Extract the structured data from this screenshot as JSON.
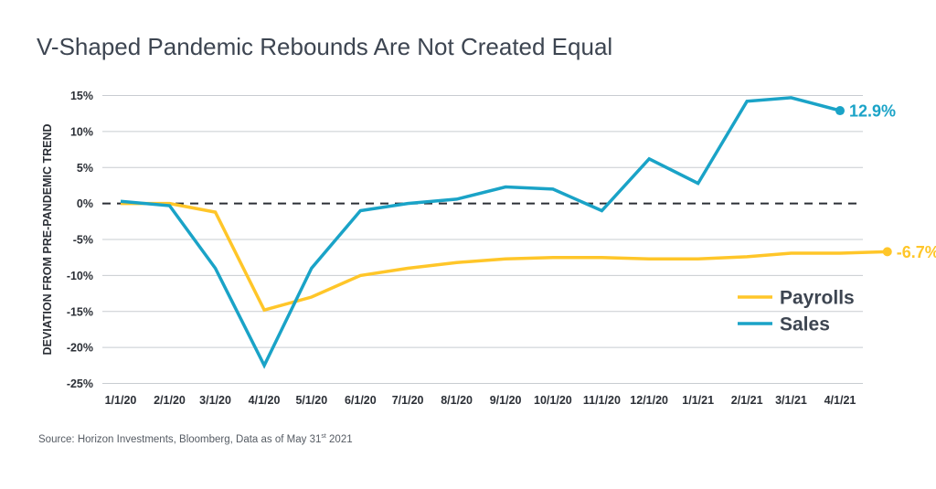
{
  "chart_data": {
    "type": "line",
    "title": "V-Shaped Pandemic Rebounds Are Not Created Equal",
    "xlabel": "",
    "ylabel": "DEVIATION FROM PRE-PANDEMIC TREND",
    "x": [
      "1/1/20",
      "2/1/20",
      "3/1/20",
      "4/1/20",
      "5/1/20",
      "6/1/20",
      "7/1/20",
      "8/1/20",
      "9/1/20",
      "10/1/20",
      "11/1/20",
      "12/1/20",
      "1/1/21",
      "2/1/21",
      "3/1/21",
      "4/1/21"
    ],
    "yticks": [
      "15%",
      "10%",
      "5%",
      "0%",
      "-5%",
      "-10%",
      "-15%",
      "-20%",
      "-25%"
    ],
    "ylim": [
      -25,
      15
    ],
    "zero_line": "dashed",
    "grid": "horizontal",
    "legend_position": "right",
    "series": [
      {
        "name": "Payrolls",
        "color": "#ffc629",
        "points": [
          [
            "2020-01-01",
            0.0
          ],
          [
            "2020-02-01",
            0.0
          ],
          [
            "2020-03-01",
            -1.2
          ],
          [
            "2020-04-01",
            -14.8
          ],
          [
            "2020-05-01",
            -13.0
          ],
          [
            "2020-06-01",
            -10.0
          ],
          [
            "2020-07-01",
            -9.0
          ],
          [
            "2020-08-01",
            -8.2
          ],
          [
            "2020-09-01",
            -7.7
          ],
          [
            "2020-10-01",
            -7.5
          ],
          [
            "2020-11-01",
            -7.5
          ],
          [
            "2020-12-01",
            -7.7
          ],
          [
            "2021-01-01",
            -7.7
          ],
          [
            "2021-02-01",
            -7.4
          ],
          [
            "2021-03-01",
            -6.9
          ],
          [
            "2021-04-01",
            -6.9
          ],
          [
            "2021-05-01",
            -6.7
          ]
        ],
        "end_label": "-6.7%"
      },
      {
        "name": "Sales",
        "color": "#1aa3c7",
        "points": [
          [
            "2020-01-01",
            0.3
          ],
          [
            "2020-02-01",
            -0.3
          ],
          [
            "2020-03-01",
            -9.0
          ],
          [
            "2020-04-01",
            -22.5
          ],
          [
            "2020-05-01",
            -9.0
          ],
          [
            "2020-06-01",
            -1.0
          ],
          [
            "2020-07-01",
            0.0
          ],
          [
            "2020-08-01",
            0.6
          ],
          [
            "2020-09-01",
            2.3
          ],
          [
            "2020-10-01",
            2.0
          ],
          [
            "2020-11-01",
            -1.0
          ],
          [
            "2020-12-01",
            6.2
          ],
          [
            "2021-01-01",
            2.8
          ],
          [
            "2021-02-01",
            14.2
          ],
          [
            "2021-03-01",
            14.7
          ],
          [
            "2021-04-01",
            12.9
          ]
        ],
        "end_label": "12.9%"
      }
    ],
    "source": {
      "prefix": "Source: Horizon Investments, Bloomberg, Data as of May 31",
      "superscript": "st",
      "suffix": " 2021"
    }
  }
}
